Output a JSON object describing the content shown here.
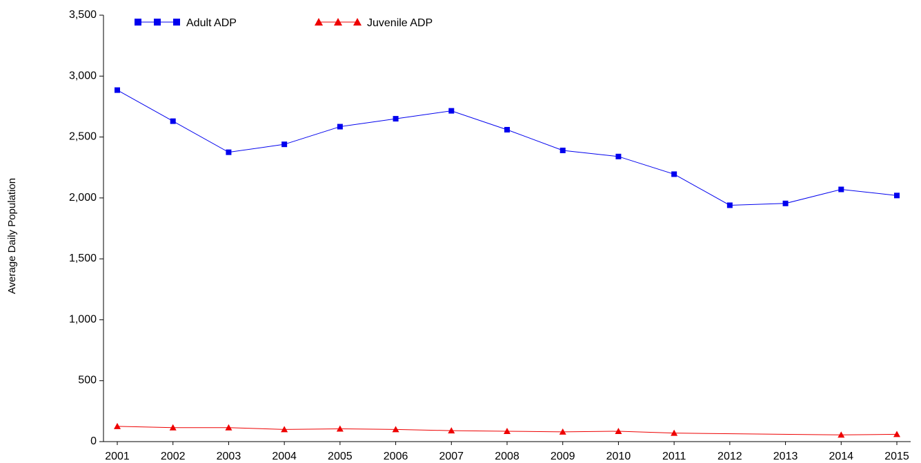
{
  "chart_data": {
    "type": "line",
    "title": "",
    "xlabel": "",
    "ylabel": "Average Daily Population",
    "ylim": [
      0,
      3500
    ],
    "yticks": [
      0,
      500,
      1000,
      1500,
      2000,
      2500,
      3000,
      3500
    ],
    "ytick_labels": [
      "0",
      "500",
      "1,000",
      "1,500",
      "2,000",
      "2,500",
      "3,000",
      "3,500"
    ],
    "grid": false,
    "legend": "top-left",
    "x": [
      2001,
      2002,
      2003,
      2004,
      2005,
      2006,
      2007,
      2008,
      2009,
      2010,
      2011,
      2012,
      2013,
      2014,
      2015
    ],
    "x_labels": [
      "2001",
      "2002",
      "2003",
      "2004",
      "2005",
      "2006",
      "2007",
      "2008",
      "2009",
      "2010",
      "2011",
      "2012",
      "2013",
      "2014",
      "2015"
    ],
    "series": [
      {
        "name": "Adult ADP",
        "color": "#0000ee",
        "marker": "square",
        "values": [
          2885,
          2630,
          2375,
          2440,
          2585,
          2650,
          2715,
          2560,
          2390,
          2340,
          2195,
          1940,
          1955,
          2070,
          2020
        ],
        "missing": []
      },
      {
        "name": "Juvenile ADP",
        "color": "#ee0000",
        "marker": "triangle",
        "values": [
          125,
          115,
          115,
          100,
          105,
          100,
          90,
          85,
          80,
          85,
          70,
          null,
          null,
          55,
          60
        ],
        "missing": [
          2012,
          2013
        ]
      }
    ]
  }
}
